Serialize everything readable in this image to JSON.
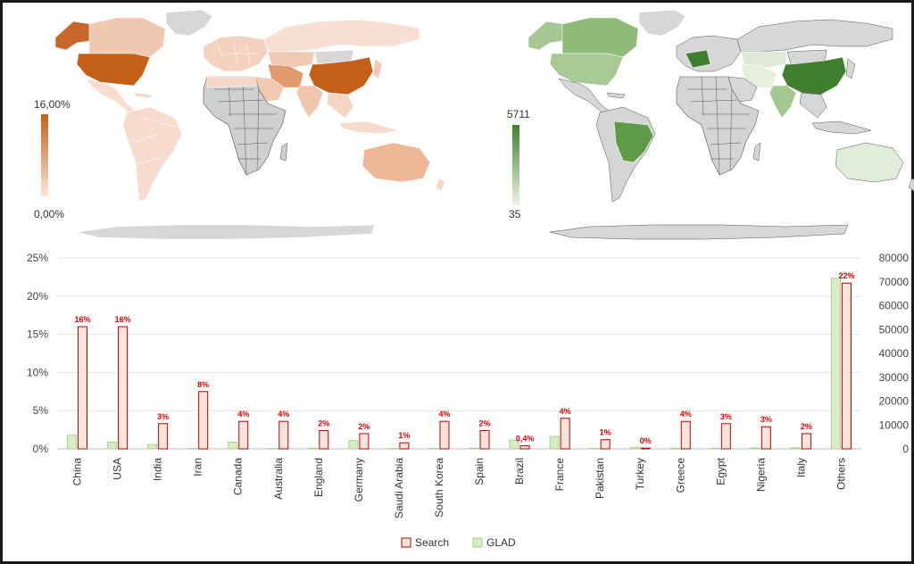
{
  "maps": {
    "search_map": {
      "legend_max": "16,00%",
      "legend_min": "0,00%",
      "color_high": "#c45f17",
      "color_low": "#fbe6dc",
      "no_data_color": "#d7d7d7"
    },
    "glad_map": {
      "legend_max": "5711",
      "legend_min": "35",
      "color_high": "#3f7f2e",
      "color_low": "#edf5e5",
      "no_data_color": "#d7d7d7"
    }
  },
  "chart_data": {
    "type": "bar",
    "title": "",
    "categories": [
      "China",
      "USA",
      "India",
      "Iran",
      "Canada",
      "Australia",
      "England",
      "Germany",
      "Saudi Arabia",
      "South Korea",
      "Spain",
      "Brazil",
      "France",
      "Pakistan",
      "Turkey",
      "Greece",
      "Egypt",
      "Nigeria",
      "Italy",
      "Others"
    ],
    "series": [
      {
        "name": "GLAD",
        "axis": "right",
        "color": "#a9d18e",
        "fill": "#d8ecc6",
        "values": [
          5711,
          2800,
          1800,
          200,
          2800,
          150,
          300,
          3500,
          150,
          200,
          300,
          3700,
          5200,
          250,
          600,
          300,
          300,
          400,
          400,
          71500
        ]
      },
      {
        "name": "Search",
        "axis": "left",
        "color": "#c00000",
        "fill": "#fbe4dc",
        "values": [
          16,
          16,
          3.3,
          7.5,
          3.6,
          3.6,
          2.4,
          2,
          0.8,
          3.6,
          2.4,
          0.4,
          4,
          1.2,
          0.1,
          3.6,
          3.3,
          2.9,
          2,
          21.7
        ],
        "labels": [
          "16%",
          "16%",
          "3%",
          "8%",
          "4%",
          "4%",
          "2%",
          "2%",
          "1%",
          "4%",
          "2%",
          "0,4%",
          "4%",
          "1%",
          "0%",
          "4%",
          "3%",
          "3%",
          "2%",
          "22%"
        ],
        "label_color": "#e00000"
      }
    ],
    "y_left": {
      "lim": [
        0,
        25
      ],
      "ticks": [
        0,
        5,
        10,
        15,
        20,
        25
      ],
      "tick_labels": [
        "0%",
        "5%",
        "10%",
        "15%",
        "20%",
        "25%"
      ]
    },
    "y_right": {
      "lim": [
        0,
        80000
      ],
      "ticks": [
        0,
        10000,
        20000,
        30000,
        40000,
        50000,
        60000,
        70000,
        80000
      ],
      "tick_labels": [
        "0",
        "10000",
        "20000",
        "30000",
        "40000",
        "50000",
        "60000",
        "70000",
        "80000"
      ]
    },
    "grid": true,
    "grid_color": "#e6e6e6",
    "legend_position": "bottom",
    "legend": [
      {
        "name": "Search",
        "color": "#c00000",
        "fill": "#fbe4dc"
      },
      {
        "name": "GLAD",
        "color": "#a9d18e",
        "fill": "#d8ecc6"
      }
    ]
  }
}
